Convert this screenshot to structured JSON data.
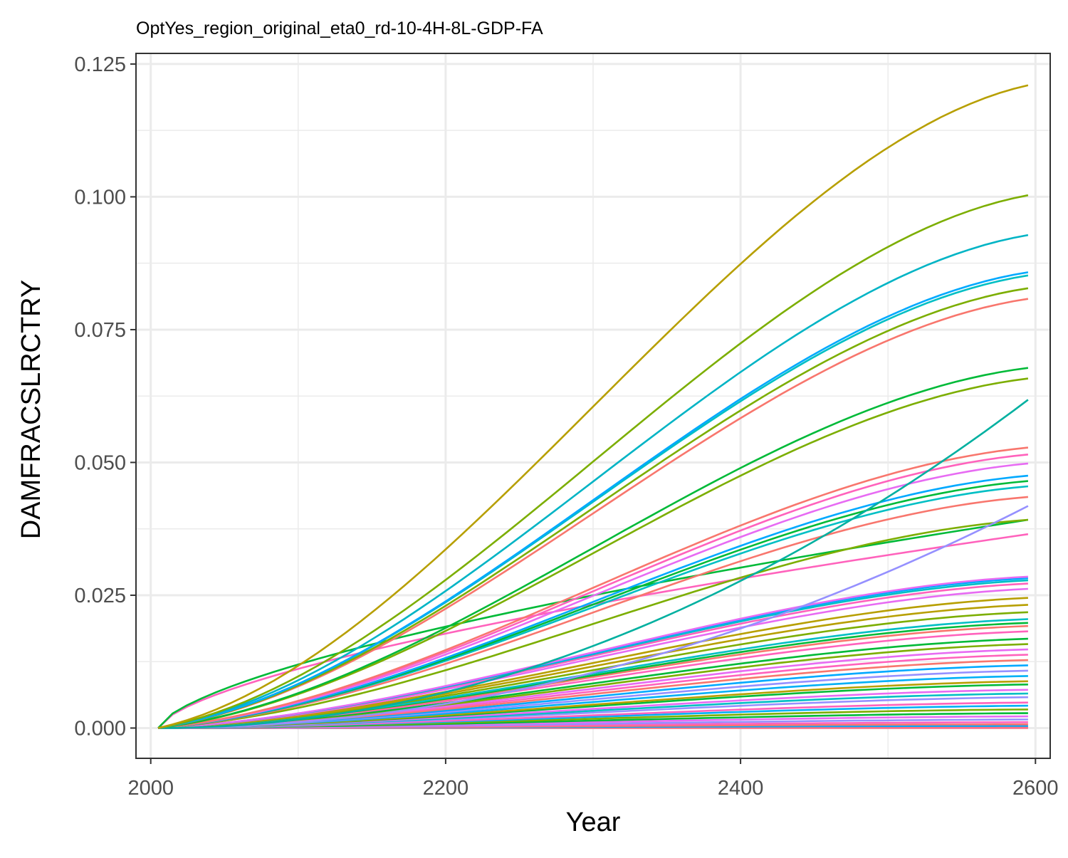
{
  "chart_data": {
    "type": "line",
    "title": "OptYes_region_original_eta0_rd-10-4H-8L-GDP-FA",
    "xlabel": "Year",
    "ylabel": "DAMFRACSLRCTRY",
    "xlim": [
      1990,
      2610
    ],
    "ylim": [
      -0.0057,
      0.127
    ],
    "x_ticks": [
      2000,
      2200,
      2400,
      2600
    ],
    "x_tick_labels": [
      "2000",
      "2200",
      "2400",
      "2600"
    ],
    "y_ticks": [
      0,
      0.025,
      0.05,
      0.075,
      0.1,
      0.125
    ],
    "y_tick_labels": [
      "0.000",
      "0.025",
      "0.050",
      "0.075",
      "0.100",
      "0.125"
    ],
    "x_minor_ticks": [
      2100,
      2300,
      2500
    ],
    "y_minor_ticks": [
      0.0125,
      0.0375,
      0.0625,
      0.0875,
      0.1125
    ],
    "grid": true,
    "legend": "none",
    "x_start": 2005,
    "x_end": 2595,
    "series": [
      {
        "color": "#B79F00",
        "end": 0.121,
        "shape": "s"
      },
      {
        "color": "#7CAE00",
        "end": 0.1003,
        "shape": "s"
      },
      {
        "color": "#00B4C5",
        "end": 0.0928,
        "shape": "s"
      },
      {
        "color": "#00A9FF",
        "end": 0.0858,
        "shape": "s"
      },
      {
        "color": "#00BFC4",
        "end": 0.0852,
        "shape": "s"
      },
      {
        "color": "#7CAE00",
        "end": 0.0828,
        "shape": "s"
      },
      {
        "color": "#F8766D",
        "end": 0.0808,
        "shape": "s"
      },
      {
        "color": "#00BA38",
        "end": 0.0678,
        "shape": "s"
      },
      {
        "color": "#7CAE00",
        "end": 0.0658,
        "shape": "s"
      },
      {
        "color": "#00B0A0",
        "end": 0.0618,
        "shape": "convex"
      },
      {
        "color": "#F8766D",
        "end": 0.0528,
        "shape": "s"
      },
      {
        "color": "#FF62BC",
        "end": 0.0515,
        "shape": "s"
      },
      {
        "color": "#E76BF3",
        "end": 0.0498,
        "shape": "s"
      },
      {
        "color": "#00A9FF",
        "end": 0.0475,
        "shape": "s"
      },
      {
        "color": "#00BA38",
        "end": 0.0465,
        "shape": "s"
      },
      {
        "color": "#00BFC4",
        "end": 0.0455,
        "shape": "s"
      },
      {
        "color": "#F8766D",
        "end": 0.0435,
        "shape": "s"
      },
      {
        "color": "#9590FF",
        "end": 0.0418,
        "shape": "convex"
      },
      {
        "color": "#7CAE00",
        "end": 0.0392,
        "shape": "s"
      },
      {
        "color": "#00BA38",
        "end": 0.0392,
        "shape": "conc"
      },
      {
        "color": "#FF62BC",
        "end": 0.0365,
        "shape": "conc"
      },
      {
        "color": "#E76BF3",
        "end": 0.0285,
        "shape": "s"
      },
      {
        "color": "#00A9FF",
        "end": 0.0282,
        "shape": "s"
      },
      {
        "color": "#00BFC4",
        "end": 0.0278,
        "shape": "s"
      },
      {
        "color": "#FF62BC",
        "end": 0.0272,
        "shape": "s"
      },
      {
        "color": "#E76BF3",
        "end": 0.0262,
        "shape": "s"
      },
      {
        "color": "#B79F00",
        "end": 0.0245,
        "shape": "s"
      },
      {
        "color": "#B79F00",
        "end": 0.0232,
        "shape": "s"
      },
      {
        "color": "#7CAE00",
        "end": 0.0218,
        "shape": "s"
      },
      {
        "color": "#00BFC4",
        "end": 0.0205,
        "shape": "s"
      },
      {
        "color": "#00BA38",
        "end": 0.0198,
        "shape": "s"
      },
      {
        "color": "#F8766D",
        "end": 0.0192,
        "shape": "s"
      },
      {
        "color": "#FF62BC",
        "end": 0.0182,
        "shape": "s"
      },
      {
        "color": "#00BA38",
        "end": 0.0168,
        "shape": "s"
      },
      {
        "color": "#7CAE00",
        "end": 0.0158,
        "shape": "s"
      },
      {
        "color": "#E76BF3",
        "end": 0.0148,
        "shape": "s"
      },
      {
        "color": "#FF62BC",
        "end": 0.0138,
        "shape": "s"
      },
      {
        "color": "#F8766D",
        "end": 0.0128,
        "shape": "s"
      },
      {
        "color": "#00A9FF",
        "end": 0.0118,
        "shape": "s"
      },
      {
        "color": "#9590FF",
        "end": 0.0108,
        "shape": "s"
      },
      {
        "color": "#00B0F6",
        "end": 0.0098,
        "shape": "s"
      },
      {
        "color": "#B79F00",
        "end": 0.0088,
        "shape": "s"
      },
      {
        "color": "#00BA38",
        "end": 0.0082,
        "shape": "s"
      },
      {
        "color": "#E76BF3",
        "end": 0.0072,
        "shape": "s"
      },
      {
        "color": "#00BFC4",
        "end": 0.0065,
        "shape": "s"
      },
      {
        "color": "#9590FF",
        "end": 0.0058,
        "shape": "s"
      },
      {
        "color": "#FF62BC",
        "end": 0.0048,
        "shape": "s"
      },
      {
        "color": "#00B0F6",
        "end": 0.0042,
        "shape": "s"
      },
      {
        "color": "#7CAE00",
        "end": 0.0035,
        "shape": "s"
      },
      {
        "color": "#00BA38",
        "end": 0.0028,
        "shape": "s"
      },
      {
        "color": "#E76BF3",
        "end": 0.0022,
        "shape": "s"
      },
      {
        "color": "#9590FF",
        "end": 0.0016,
        "shape": "s"
      },
      {
        "color": "#FF62BC",
        "end": 0.0011,
        "shape": "s"
      },
      {
        "color": "#F8766D",
        "end": 0.0007,
        "shape": "s"
      },
      {
        "color": "#00A9FF",
        "end": 0.0004,
        "shape": "s"
      },
      {
        "color": "#F8766D",
        "end": 0.0002,
        "shape": "s"
      },
      {
        "color": "#FF62BC",
        "end": 0.0001,
        "shape": "s"
      },
      {
        "color": "#F8766D",
        "end": 0.0,
        "shape": "s"
      }
    ]
  }
}
